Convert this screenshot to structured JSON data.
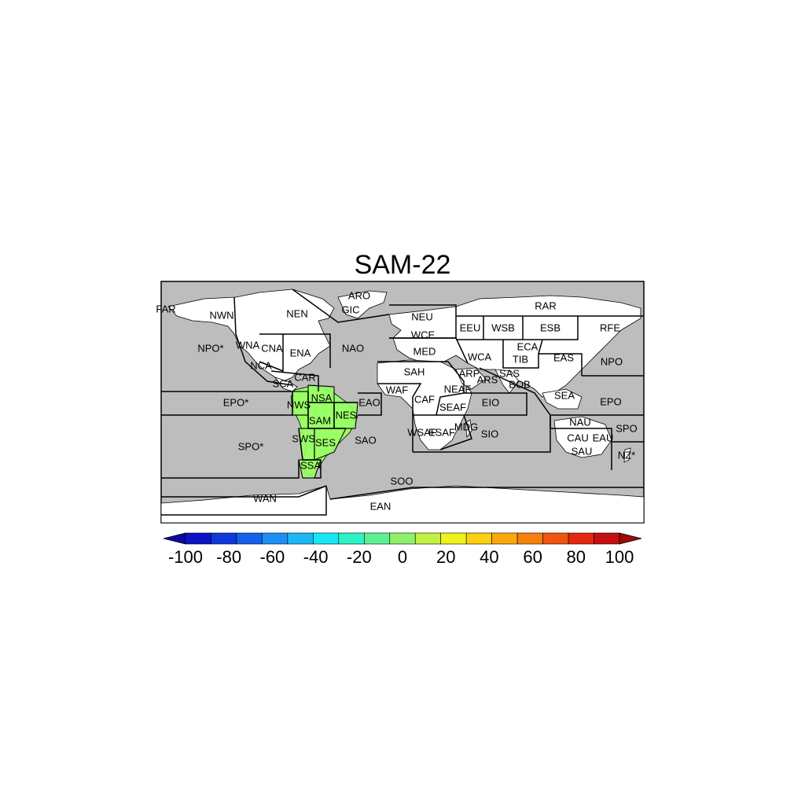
{
  "title": "SAM-22",
  "colors": {
    "ocean": "#bdbdbd",
    "land": "#ffffff",
    "highlight": "#99ff66",
    "border": "#000000"
  },
  "regions": [
    "FAR",
    "NWN",
    "NEN",
    "ARO",
    "GIC",
    "NPO*",
    "WNA",
    "CNA",
    "ENA",
    "NAO",
    "NCA",
    "SCA",
    "CAR",
    "EPO*",
    "NWS",
    "NSA",
    "NES",
    "EAO",
    "SAM",
    "SWS",
    "SES",
    "SAO",
    "SPO*",
    "SSA",
    "SOO",
    "WAN",
    "EAN",
    "NEU",
    "WCE",
    "MED",
    "SAH",
    "WAF",
    "CAF",
    "NEAF",
    "SEAF",
    "WSAF",
    "ESAF",
    "MDG",
    "ARP",
    "EEU",
    "WSB",
    "ESB",
    "RAR",
    "RFE",
    "ECA",
    "WCA",
    "TIB",
    "EAS",
    "SAS",
    "BOB",
    "ARS",
    "EIO",
    "SIO",
    "SEA",
    "NPO",
    "EPO",
    "NAU",
    "CAU",
    "EAU",
    "SAU",
    "SPO",
    "NZ*"
  ],
  "highlighted_regions": [
    "NWS",
    "NSA",
    "NES",
    "SAM",
    "SWS",
    "SES",
    "SSA"
  ],
  "colorbar": {
    "ticks": [
      "-100",
      "-80",
      "-60",
      "-40",
      "-20",
      "0",
      "20",
      "40",
      "60",
      "80",
      "100"
    ],
    "colors": [
      "#0a0aa0",
      "#0b13c5",
      "#0e38dc",
      "#1461ea",
      "#1d8ff4",
      "#1ab8f5",
      "#18e6f8",
      "#2ef2c8",
      "#5cf095",
      "#8ff06a",
      "#c2f045",
      "#eef21f",
      "#fbd010",
      "#fba80c",
      "#f7800c",
      "#f0540e",
      "#e4280f",
      "#c41010",
      "#9e0a0a"
    ]
  }
}
